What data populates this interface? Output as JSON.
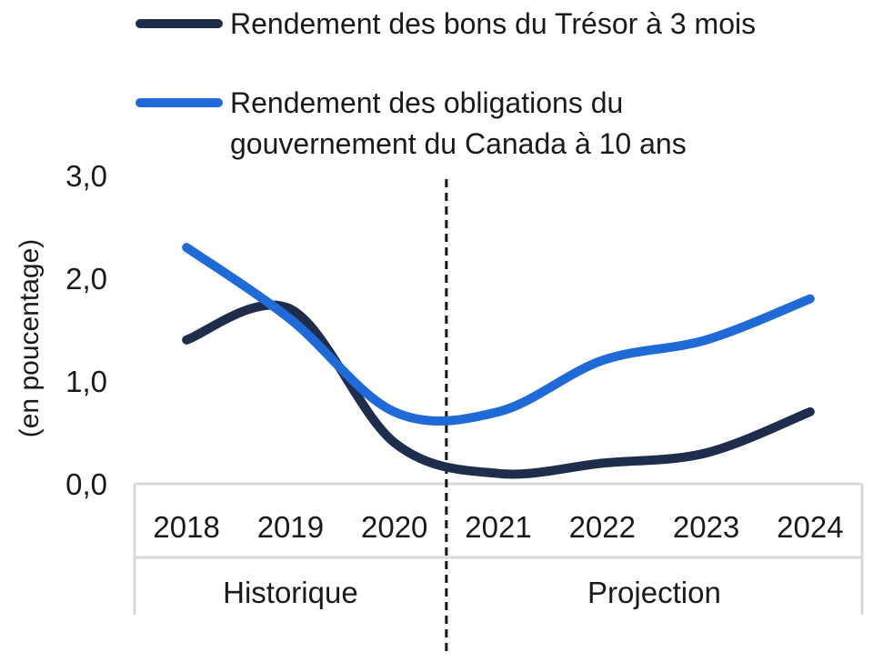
{
  "chart_data": {
    "type": "line",
    "title": "",
    "xlabel": "",
    "ylabel": "(en poucentage)",
    "categories": [
      "2018",
      "2019",
      "2020",
      "2021",
      "2022",
      "2023",
      "2024"
    ],
    "groups": [
      {
        "label": "Historique",
        "categories": [
          "2018",
          "2019",
          "2020"
        ]
      },
      {
        "label": "Projection",
        "categories": [
          "2021",
          "2022",
          "2023",
          "2024"
        ]
      }
    ],
    "divider_between": [
      "2020",
      "2021"
    ],
    "ylim": [
      0,
      3
    ],
    "yticks": [
      "0,0",
      "1,0",
      "2,0",
      "3,0"
    ],
    "series": [
      {
        "name": "Rendement des bons du Trésor à 3 mois",
        "name_lines": [
          "Rendement des bons du Trésor à 3 mois"
        ],
        "color": "#1f2d4d",
        "values": [
          1.4,
          1.7,
          0.4,
          0.1,
          0.2,
          0.3,
          0.7
        ]
      },
      {
        "name": "Rendement des obligations du gouvernement du Canada à 10 ans",
        "name_lines": [
          "Rendement des obligations du",
          "gouvernement du Canada à 10 ans"
        ],
        "color": "#1f6ad6",
        "values": [
          2.3,
          1.6,
          0.7,
          0.7,
          1.2,
          1.4,
          1.8
        ]
      }
    ],
    "grid": false,
    "legend_position": "top"
  }
}
